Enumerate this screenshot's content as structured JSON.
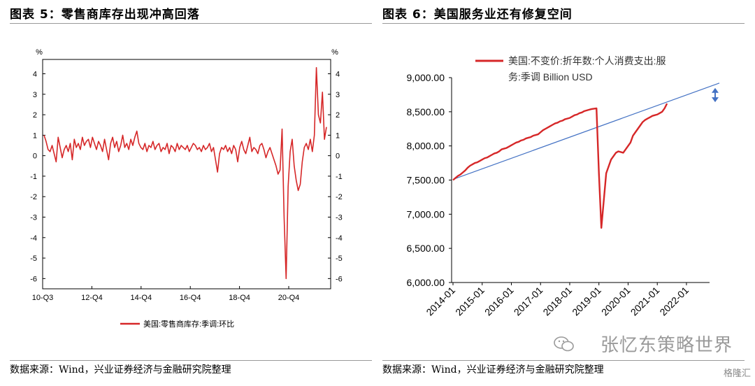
{
  "left": {
    "title": "图表 5：零售商库存出现冲高回落",
    "source": "数据来源：Wind，兴业证券经济与金融研究院整理"
  },
  "right": {
    "title": "图表 6：美国服务业还有修复空间",
    "source": "数据来源：Wind，兴业证券经济与金融研究院整理"
  },
  "watermark": "张忆东策略世界",
  "corner_logo": "格隆汇",
  "colors": {
    "series": "#d62728",
    "trend": "#4472c4",
    "arrow": "#4472c4",
    "axis": "#000000"
  },
  "chart_data": [
    {
      "type": "line",
      "unit_label": "%",
      "ylim": [
        -6.5,
        4.7
      ],
      "yticks": [
        "4",
        "3",
        "2",
        "1",
        "0",
        "-1",
        "-2",
        "-3",
        "-4",
        "-5",
        "-6"
      ],
      "xticks": [
        "10-Q3",
        "12-Q4",
        "14-Q4",
        "16-Q4",
        "18-Q4",
        "20-Q4"
      ],
      "legend": "美国:零售商库存:季调:环比",
      "legend_position": "bottom",
      "series": [
        {
          "name": "美国:零售商库存:季调:环比",
          "values": [
            1.0,
            0.7,
            0.3,
            0.2,
            0.5,
            0.1,
            -0.3,
            0.9,
            0.4,
            -0.1,
            0.3,
            0.5,
            0.2,
            0.6,
            -0.2,
            0.8,
            0.4,
            0.6,
            0.3,
            0.9,
            0.5,
            0.7,
            0.8,
            0.4,
            0.9,
            0.6,
            0.3,
            0.7,
            0.5,
            0.2,
            0.8,
            0.3,
            -0.2,
            0.6,
            0.9,
            0.4,
            0.7,
            0.2,
            0.5,
            1.0,
            0.4,
            0.6,
            0.3,
            0.8,
            0.5,
            0.9,
            1.2,
            0.6,
            0.4,
            0.3,
            0.6,
            0.2,
            0.5,
            0.4,
            0.7,
            0.3,
            0.5,
            0.6,
            0.2,
            0.4,
            0.3,
            0.6,
            0.1,
            0.5,
            0.4,
            0.2,
            0.6,
            0.3,
            0.5,
            0.4,
            0.3,
            0.5,
            0.2,
            0.4,
            0.6,
            0.5,
            0.3,
            0.4,
            0.2,
            0.5,
            0.3,
            0.4,
            0.6,
            0.2,
            0.4,
            -0.2,
            -0.8,
            0.1,
            0.4,
            0.3,
            0.5,
            0.2,
            0.4,
            0.1,
            0.5,
            0.3,
            -0.3,
            0.4,
            0.7,
            0.3,
            0.1,
            0.5,
            0.9,
            0.2,
            0.4,
            0.3,
            0.1,
            0.5,
            0.6,
            0.3,
            -0.1,
            0.2,
            0.4,
            0.1,
            -0.2,
            -0.5,
            -0.9,
            -0.7,
            1.3,
            -3.0,
            -6.0,
            -1.5,
            0.2,
            0.8,
            -0.5,
            -1.2,
            -1.7,
            -1.4,
            -0.3,
            0.4,
            0.6,
            0.3,
            0.8,
            0.2,
            1.0,
            4.3,
            2.0,
            1.6,
            3.1,
            0.8,
            1.4
          ]
        }
      ]
    },
    {
      "type": "line",
      "ylim": [
        6000,
        9000
      ],
      "yticks": [
        "9,000.00",
        "8,500.00",
        "8,000.00",
        "7,500.00",
        "7,000.00",
        "6,500.00",
        "6,000.00"
      ],
      "xticks": [
        "2014-01",
        "2015-01",
        "2016-01",
        "2017-01",
        "2018-01",
        "2019-01",
        "2020-01",
        "2021-01",
        "2022-01"
      ],
      "legend": "美国:不变价:折年数:个人消费支出:服务:季调 Billion USD",
      "legend_position": "top-left",
      "trend_line": {
        "start": 7510,
        "end": 8920
      },
      "series": [
        {
          "name": "美国:不变价:折年数:个人消费支出:服务:季调 Billion USD",
          "x_start": "2014-01",
          "values": [
            7500,
            7530,
            7560,
            7580,
            7610,
            7640,
            7680,
            7710,
            7730,
            7750,
            7760,
            7780,
            7800,
            7820,
            7830,
            7850,
            7870,
            7890,
            7900,
            7920,
            7950,
            7960,
            7970,
            7990,
            8010,
            8030,
            8050,
            8060,
            8080,
            8090,
            8110,
            8120,
            8130,
            8150,
            8160,
            8170,
            8200,
            8230,
            8250,
            8270,
            8290,
            8310,
            8330,
            8340,
            8360,
            8370,
            8390,
            8400,
            8410,
            8430,
            8450,
            8460,
            8480,
            8490,
            8510,
            8520,
            8530,
            8540,
            8545,
            8550,
            7600,
            6800,
            7200,
            7600,
            7700,
            7800,
            7850,
            7900,
            7920,
            7910,
            7900,
            7950,
            8000,
            8050,
            8150,
            8200,
            8250,
            8300,
            8350,
            8380,
            8400,
            8420,
            8440,
            8450,
            8460,
            8480,
            8500,
            8550,
            8620
          ]
        }
      ]
    }
  ]
}
